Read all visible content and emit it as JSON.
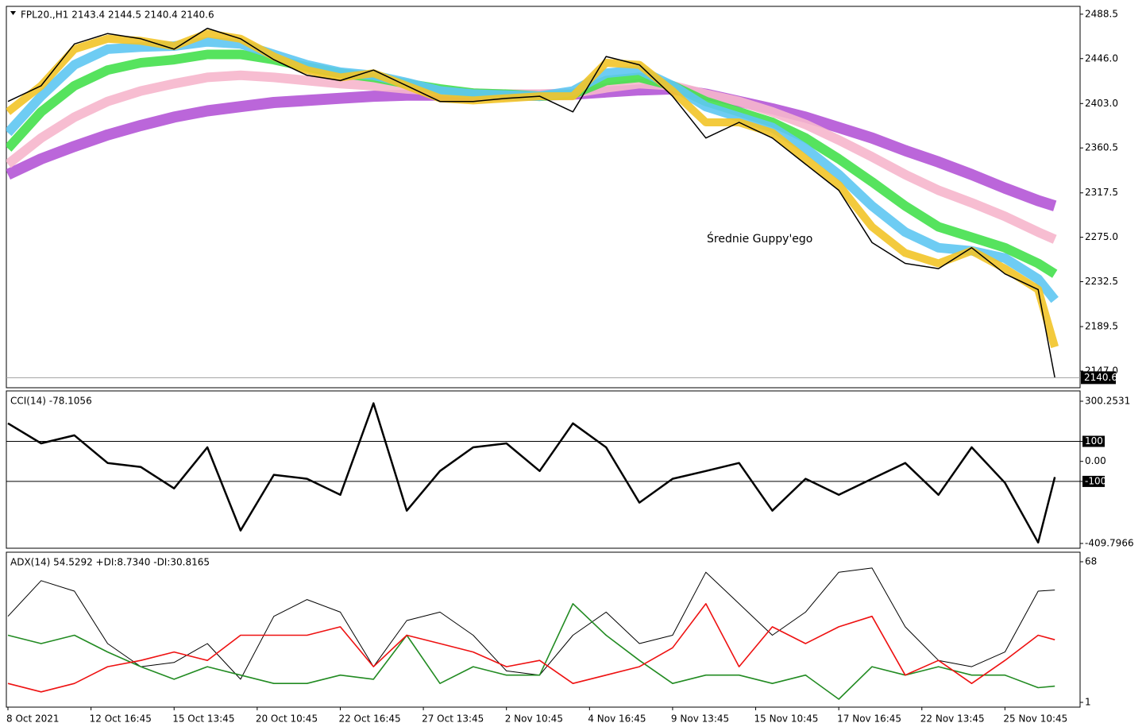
{
  "chart_data": [
    {
      "type": "line",
      "title": "FPL20.,H1  2143.4 2144.5 2140.4 2140.6",
      "annotation": "Średnie Guppy'ego",
      "x": [
        0,
        4,
        8,
        12,
        16,
        20,
        24,
        28,
        32,
        36,
        40,
        44,
        48,
        52,
        56,
        60,
        64,
        68,
        72,
        76,
        80,
        84,
        88,
        92,
        96,
        100,
        104,
        108,
        112,
        116,
        120,
        124,
        126
      ],
      "xlim": [
        0,
        130
      ],
      "ylim": [
        2131,
        2496
      ],
      "yticks": [
        {
          "value": 2147,
          "label": "2147.0"
        },
        2189.5,
        2232.5,
        {
          "value": 2275,
          "label": "2275.0"
        },
        2317.5,
        2360.5,
        {
          "value": 2403,
          "label": "2403.0"
        },
        {
          "value": 2446,
          "label": "2446.0"
        },
        2488.5
      ],
      "series": [
        {
          "color": "#b455d6",
          "values": [
            2335,
            2350,
            2362,
            2373,
            2382,
            2390,
            2396,
            2400,
            2404,
            2406,
            2408,
            2410,
            2411,
            2411,
            2411,
            2411,
            2411,
            2412,
            2414,
            2416,
            2417,
            2412,
            2405,
            2398,
            2390,
            2380,
            2370,
            2358,
            2347,
            2335,
            2322,
            2310,
            2305
          ]
        },
        {
          "color": "#f6b6cc",
          "values": [
            2345,
            2370,
            2390,
            2405,
            2415,
            2422,
            2428,
            2430,
            2428,
            2425,
            2422,
            2420,
            2417,
            2415,
            2413,
            2412,
            2412,
            2413,
            2418,
            2422,
            2420,
            2412,
            2405,
            2395,
            2383,
            2368,
            2352,
            2335,
            2320,
            2308,
            2295,
            2280,
            2273
          ]
        },
        {
          "color": "#44e04c",
          "values": [
            2360,
            2395,
            2420,
            2435,
            2442,
            2445,
            2450,
            2450,
            2445,
            2438,
            2432,
            2428,
            2422,
            2417,
            2413,
            2412,
            2410,
            2412,
            2425,
            2428,
            2420,
            2405,
            2395,
            2385,
            2370,
            2350,
            2328,
            2305,
            2285,
            2275,
            2265,
            2250,
            2240
          ]
        },
        {
          "color": "#5ec6f2",
          "values": [
            2375,
            2410,
            2440,
            2455,
            2457,
            2458,
            2462,
            2460,
            2450,
            2440,
            2433,
            2430,
            2423,
            2415,
            2412,
            2411,
            2410,
            2415,
            2432,
            2435,
            2420,
            2400,
            2390,
            2380,
            2360,
            2335,
            2305,
            2280,
            2265,
            2262,
            2255,
            2235,
            2215
          ]
        },
        {
          "color": "#f2c428",
          "values": [
            2395,
            2420,
            2455,
            2465,
            2463,
            2458,
            2470,
            2465,
            2448,
            2435,
            2428,
            2432,
            2420,
            2408,
            2406,
            2408,
            2410,
            2410,
            2442,
            2440,
            2415,
            2385,
            2385,
            2375,
            2350,
            2325,
            2285,
            2260,
            2250,
            2262,
            2245,
            2225,
            2170
          ]
        },
        {
          "color": "#000000",
          "values": [
            2405,
            2420,
            2460,
            2470,
            2465,
            2455,
            2475,
            2465,
            2445,
            2430,
            2425,
            2435,
            2420,
            2405,
            2405,
            2408,
            2410,
            2395,
            2448,
            2440,
            2410,
            2370,
            2385,
            2370,
            2345,
            2320,
            2270,
            2250,
            2245,
            2265,
            2240,
            2225,
            2140.6
          ]
        }
      ]
    },
    {
      "type": "line",
      "title": "CCI(14) -78.1056",
      "x": [
        0,
        4,
        8,
        12,
        16,
        20,
        24,
        28,
        32,
        36,
        40,
        44,
        48,
        52,
        56,
        60,
        64,
        68,
        72,
        76,
        80,
        84,
        88,
        92,
        96,
        100,
        104,
        108,
        112,
        116,
        120,
        124,
        126
      ],
      "xlim": [
        0,
        130
      ],
      "ylim": [
        -409.7966,
        300.2531
      ],
      "yticks": [
        300.2531,
        100,
        {
          "value": 0,
          "label": "0.00"
        },
        -100,
        -409.7966
      ],
      "levels": [
        100,
        -100
      ],
      "series": [
        {
          "color": "#000000",
          "values": [
            190,
            90,
            130,
            -8,
            -28,
            -135,
            70,
            -345,
            -67,
            -87,
            -167,
            290,
            -246,
            -48,
            70,
            90,
            -48,
            190,
            70,
            -206,
            -87,
            -48,
            -8,
            -246,
            -87,
            -167,
            -87,
            -8,
            -167,
            70,
            -107,
            -405,
            -78.1056
          ]
        }
      ]
    },
    {
      "type": "line",
      "title": "ADX(14) 54.5292 +DI:8.7340 -DI:30.8165",
      "x": [
        0,
        4,
        8,
        12,
        16,
        20,
        24,
        28,
        32,
        36,
        40,
        44,
        48,
        52,
        56,
        60,
        64,
        68,
        72,
        76,
        80,
        84,
        88,
        92,
        96,
        100,
        104,
        108,
        112,
        116,
        120,
        124,
        126
      ],
      "xlim": [
        0,
        130
      ],
      "ylim": [
        1,
        68
      ],
      "yticks": [
        68,
        1
      ],
      "xticks": [
        {
          "value": 0,
          "label": "8 Oct 2021"
        },
        {
          "value": 10,
          "label": "12 Oct 16:45"
        },
        {
          "value": 20,
          "label": "15 Oct 13:45"
        },
        {
          "value": 30,
          "label": "20 Oct 10:45"
        },
        {
          "value": 40,
          "label": "22 Oct 16:45"
        },
        {
          "value": 50,
          "label": "27 Oct 13:45"
        },
        {
          "value": 60,
          "label": "2 Nov 10:45"
        },
        {
          "value": 70,
          "label": "4 Nov 16:45"
        },
        {
          "value": 80,
          "label": "9 Nov 13:45"
        },
        {
          "value": 90,
          "label": "15 Nov 10:45"
        },
        {
          "value": 100,
          "label": "17 Nov 16:45"
        },
        {
          "value": 110,
          "label": "22 Nov 13:45"
        },
        {
          "value": 120,
          "label": "25 Nov 10:45"
        }
      ],
      "series": [
        {
          "color": "#000000",
          "values": [
            42,
            59,
            54,
            29,
            18,
            20,
            29,
            12,
            42,
            50,
            44,
            18,
            40,
            44,
            33,
            16,
            14,
            33,
            44,
            29,
            33,
            63,
            48,
            33,
            44,
            63,
            65,
            37,
            21,
            18,
            25,
            54,
            54.5292
          ]
        },
        {
          "color": "#228b22",
          "values": [
            33,
            29,
            33,
            25,
            18,
            12,
            18,
            14,
            10,
            10,
            14,
            12,
            33,
            10,
            18,
            14,
            14,
            48,
            33,
            21,
            10,
            14,
            14,
            10,
            14,
            2.5,
            18,
            14,
            18,
            14,
            14,
            8,
            8.734
          ]
        },
        {
          "color": "#ee1111",
          "values": [
            10,
            6,
            10,
            18,
            21,
            25,
            21,
            33,
            33,
            33,
            37,
            18,
            33,
            29,
            25,
            18,
            21,
            10,
            14,
            18,
            27,
            48,
            18,
            37,
            29,
            37,
            42,
            14,
            21,
            10,
            21,
            33,
            30.8165
          ]
        }
      ]
    }
  ]
}
